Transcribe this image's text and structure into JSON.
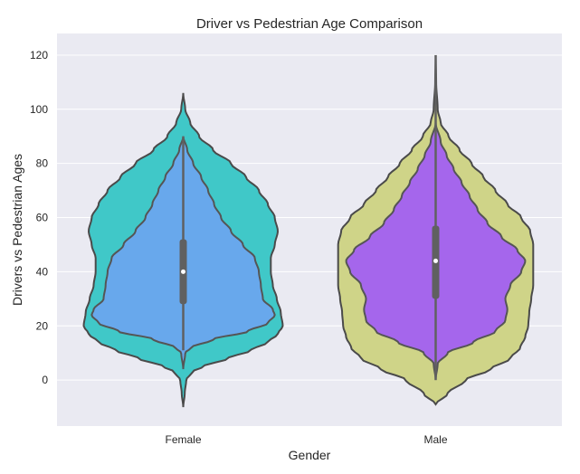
{
  "chart_data": {
    "type": "violin",
    "title": "Driver vs Pedestrian Age Comparison",
    "xlabel": "Gender",
    "ylabel": "Drivers vs Pedestrian Ages",
    "categories": [
      "Female",
      "Male"
    ],
    "ylim": [
      -17,
      128
    ],
    "yticks": [
      0,
      20,
      40,
      60,
      80,
      100,
      120
    ],
    "grid": true,
    "background_color": "#eaeaf2",
    "violins": [
      {
        "category": "Female",
        "outer": {
          "color": "#40c8c8",
          "range": [
            -10,
            106
          ],
          "profile": [
            [
              -10,
              0.0
            ],
            [
              -5,
              0.015
            ],
            [
              0,
              0.03
            ],
            [
              3,
              0.09
            ],
            [
              5,
              0.2
            ],
            [
              8,
              0.45
            ],
            [
              11,
              0.68
            ],
            [
              14,
              0.85
            ],
            [
              17,
              0.95
            ],
            [
              20,
              1.0
            ],
            [
              25,
              0.98
            ],
            [
              30,
              0.94
            ],
            [
              35,
              0.9
            ],
            [
              40,
              0.88
            ],
            [
              45,
              0.88
            ],
            [
              50,
              0.92
            ],
            [
              55,
              0.95
            ],
            [
              60,
              0.92
            ],
            [
              65,
              0.85
            ],
            [
              70,
              0.76
            ],
            [
              75,
              0.63
            ],
            [
              80,
              0.48
            ],
            [
              85,
              0.3
            ],
            [
              90,
              0.16
            ],
            [
              95,
              0.07
            ],
            [
              100,
              0.02
            ],
            [
              106,
              0.0
            ]
          ]
        },
        "inner": {
          "color": "#68a8ec",
          "range": [
            4,
            90
          ],
          "profile": [
            [
              4,
              0.0
            ],
            [
              10,
              0.02
            ],
            [
              12,
              0.08
            ],
            [
              15,
              0.3
            ],
            [
              18,
              0.65
            ],
            [
              21,
              0.85
            ],
            [
              24,
              0.92
            ],
            [
              26,
              0.9
            ],
            [
              30,
              0.8
            ],
            [
              35,
              0.78
            ],
            [
              40,
              0.76
            ],
            [
              45,
              0.72
            ],
            [
              50,
              0.6
            ],
            [
              55,
              0.48
            ],
            [
              60,
              0.38
            ],
            [
              65,
              0.31
            ],
            [
              70,
              0.25
            ],
            [
              75,
              0.18
            ],
            [
              80,
              0.1
            ],
            [
              85,
              0.04
            ],
            [
              90,
              0.0
            ]
          ]
        },
        "quartiles": [
          28,
          52
        ],
        "median": 40,
        "whisker": [
          11,
          90
        ]
      },
      {
        "category": "Male",
        "outer": {
          "color": "#cfd488",
          "range": [
            -9,
            120
          ],
          "profile": [
            [
              -9,
              0.0
            ],
            [
              -5,
              0.12
            ],
            [
              0,
              0.3
            ],
            [
              4,
              0.55
            ],
            [
              8,
              0.75
            ],
            [
              12,
              0.85
            ],
            [
              16,
              0.9
            ],
            [
              20,
              0.93
            ],
            [
              25,
              0.94
            ],
            [
              30,
              0.96
            ],
            [
              35,
              0.98
            ],
            [
              40,
              0.98
            ],
            [
              45,
              0.98
            ],
            [
              50,
              0.98
            ],
            [
              55,
              0.95
            ],
            [
              60,
              0.86
            ],
            [
              65,
              0.72
            ],
            [
              70,
              0.6
            ],
            [
              75,
              0.48
            ],
            [
              80,
              0.36
            ],
            [
              85,
              0.24
            ],
            [
              90,
              0.13
            ],
            [
              95,
              0.05
            ],
            [
              100,
              0.02
            ],
            [
              110,
              0.005
            ],
            [
              120,
              0.0
            ]
          ]
        },
        "inner": {
          "color": "#a566ec",
          "range": [
            0,
            95
          ],
          "profile": [
            [
              0,
              0.0
            ],
            [
              6,
              0.02
            ],
            [
              10,
              0.12
            ],
            [
              14,
              0.38
            ],
            [
              18,
              0.6
            ],
            [
              22,
              0.7
            ],
            [
              26,
              0.72
            ],
            [
              30,
              0.7
            ],
            [
              35,
              0.75
            ],
            [
              40,
              0.86
            ],
            [
              44,
              0.9
            ],
            [
              48,
              0.82
            ],
            [
              53,
              0.66
            ],
            [
              58,
              0.52
            ],
            [
              63,
              0.42
            ],
            [
              68,
              0.34
            ],
            [
              73,
              0.26
            ],
            [
              78,
              0.18
            ],
            [
              83,
              0.11
            ],
            [
              88,
              0.05
            ],
            [
              95,
              0.0
            ]
          ]
        },
        "quartiles": [
          30,
          57
        ],
        "median": 44,
        "whisker": [
          0,
          120
        ]
      }
    ]
  }
}
